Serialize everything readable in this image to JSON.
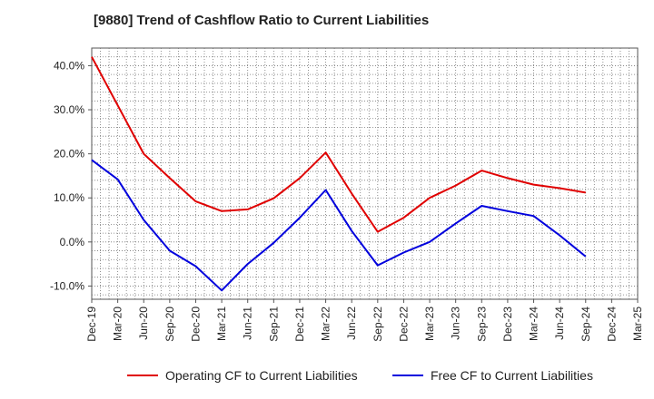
{
  "chart_data": {
    "type": "line",
    "title": "[9880]  Trend of Cashflow Ratio to Current Liabilities",
    "xlabel": "",
    "ylabel": "",
    "categories": [
      "Dec-19",
      "Mar-20",
      "Jun-20",
      "Sep-20",
      "Dec-20",
      "Mar-21",
      "Jun-21",
      "Sep-21",
      "Dec-21",
      "Mar-22",
      "Jun-22",
      "Sep-22",
      "Dec-22",
      "Mar-23",
      "Jun-23",
      "Sep-23",
      "Dec-23",
      "Mar-24",
      "Jun-24",
      "Sep-24",
      "Dec-24",
      "Mar-25"
    ],
    "y_tick_labels": [
      "-10.0%",
      "0.0%",
      "10.0%",
      "20.0%",
      "30.0%",
      "40.0%"
    ],
    "y_tick_values": [
      -10,
      0,
      10,
      20,
      30,
      40
    ],
    "ylim": [
      -13,
      44
    ],
    "grid": true,
    "legend_position": "bottom",
    "series": [
      {
        "name": "Operating CF to Current Liabilities",
        "color": "#e00000",
        "values": [
          42.0,
          31.0,
          20.0,
          14.5,
          9.2,
          7.0,
          7.4,
          9.9,
          14.5,
          20.3,
          11.0,
          2.3,
          5.5,
          10.0,
          12.8,
          16.2,
          14.5,
          13.0,
          12.2,
          11.2,
          null,
          null
        ]
      },
      {
        "name": "Free CF to Current Liabilities",
        "color": "#0000dd",
        "values": [
          18.6,
          14.2,
          5.0,
          -2.0,
          -5.5,
          -11.0,
          -5.0,
          -0.2,
          5.5,
          11.8,
          2.5,
          -5.3,
          -2.4,
          0.0,
          4.2,
          8.2,
          7.0,
          5.9,
          1.5,
          -3.3,
          null,
          null
        ]
      }
    ]
  }
}
